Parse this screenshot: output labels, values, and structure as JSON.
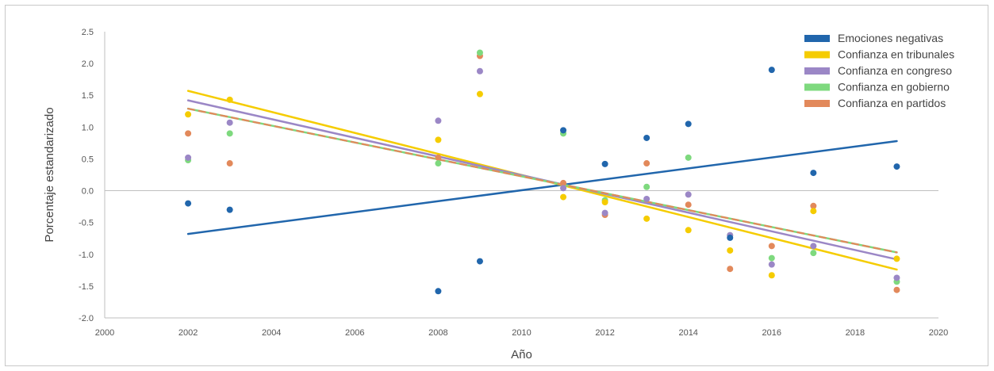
{
  "chart_data": {
    "type": "scatter",
    "xlabel": "Año",
    "ylabel": "Porcentaje estandarizado",
    "xlim": [
      2000,
      2020
    ],
    "ylim": [
      -2.0,
      2.5
    ],
    "xticks": [
      "2000",
      "2002",
      "2004",
      "2006",
      "2008",
      "2010",
      "2012",
      "2014",
      "2016",
      "2018",
      "2020"
    ],
    "yticks": [
      "2.5",
      "2.0",
      "1.5",
      "1.0",
      "0.5",
      "0.0",
      "-0.5",
      "-1.0",
      "-1.5",
      "-2.0"
    ],
    "grid": false,
    "legend_position": "top-right",
    "series": [
      {
        "name": "Emociones negativas",
        "color": "#2166ac",
        "x": [
          2002,
          2003,
          2008,
          2009,
          2011,
          2012,
          2013,
          2014,
          2015,
          2016,
          2017,
          2019
        ],
        "y": [
          -0.2,
          -0.3,
          -1.58,
          -1.11,
          0.95,
          0.42,
          0.83,
          1.05,
          -0.74,
          1.9,
          0.28,
          0.38
        ],
        "trend": [
          [
            2002,
            -0.68
          ],
          [
            2019,
            0.78
          ]
        ]
      },
      {
        "name": "Confianza en tribunales",
        "color": "#f5cc00",
        "x": [
          2002,
          2003,
          2008,
          2009,
          2011,
          2012,
          2013,
          2014,
          2015,
          2016,
          2017,
          2019
        ],
        "y": [
          1.2,
          1.43,
          0.8,
          1.52,
          -0.1,
          -0.18,
          -0.44,
          -0.62,
          -0.94,
          -1.33,
          -0.32,
          -1.07
        ],
        "trend": [
          [
            2002,
            1.57
          ],
          [
            2019,
            -1.24
          ]
        ]
      },
      {
        "name": "Confianza en congreso",
        "color": "#9b87c6",
        "x": [
          2002,
          2003,
          2008,
          2009,
          2011,
          2012,
          2013,
          2014,
          2015,
          2016,
          2017,
          2019
        ],
        "y": [
          0.52,
          1.07,
          1.1,
          1.88,
          0.04,
          -0.35,
          -0.13,
          -0.06,
          -0.7,
          -1.16,
          -0.87,
          -1.37
        ],
        "trend": [
          [
            2002,
            1.42
          ],
          [
            2019,
            -1.08
          ]
        ]
      },
      {
        "name": "Confianza en gobierno",
        "color": "#7ed97e",
        "x": [
          2002,
          2003,
          2008,
          2009,
          2011,
          2012,
          2013,
          2014,
          2015,
          2016,
          2017,
          2019
        ],
        "y": [
          0.48,
          0.9,
          0.43,
          2.17,
          0.9,
          -0.15,
          0.06,
          0.52,
          -0.7,
          -1.06,
          -0.98,
          -1.43
        ],
        "trend": [
          [
            2002,
            1.29
          ],
          [
            2019,
            -0.97
          ]
        ]
      },
      {
        "name": "Confianza en partidos",
        "color": "#e2895b",
        "x": [
          2002,
          2003,
          2008,
          2009,
          2011,
          2012,
          2013,
          2014,
          2015,
          2016,
          2017,
          2019
        ],
        "y": [
          0.9,
          0.43,
          0.52,
          2.12,
          0.12,
          -0.38,
          0.43,
          -0.22,
          -1.23,
          -0.87,
          -0.24,
          -1.56
        ],
        "trend": [
          [
            2002,
            1.29
          ],
          [
            2019,
            -0.97
          ]
        ]
      }
    ]
  }
}
